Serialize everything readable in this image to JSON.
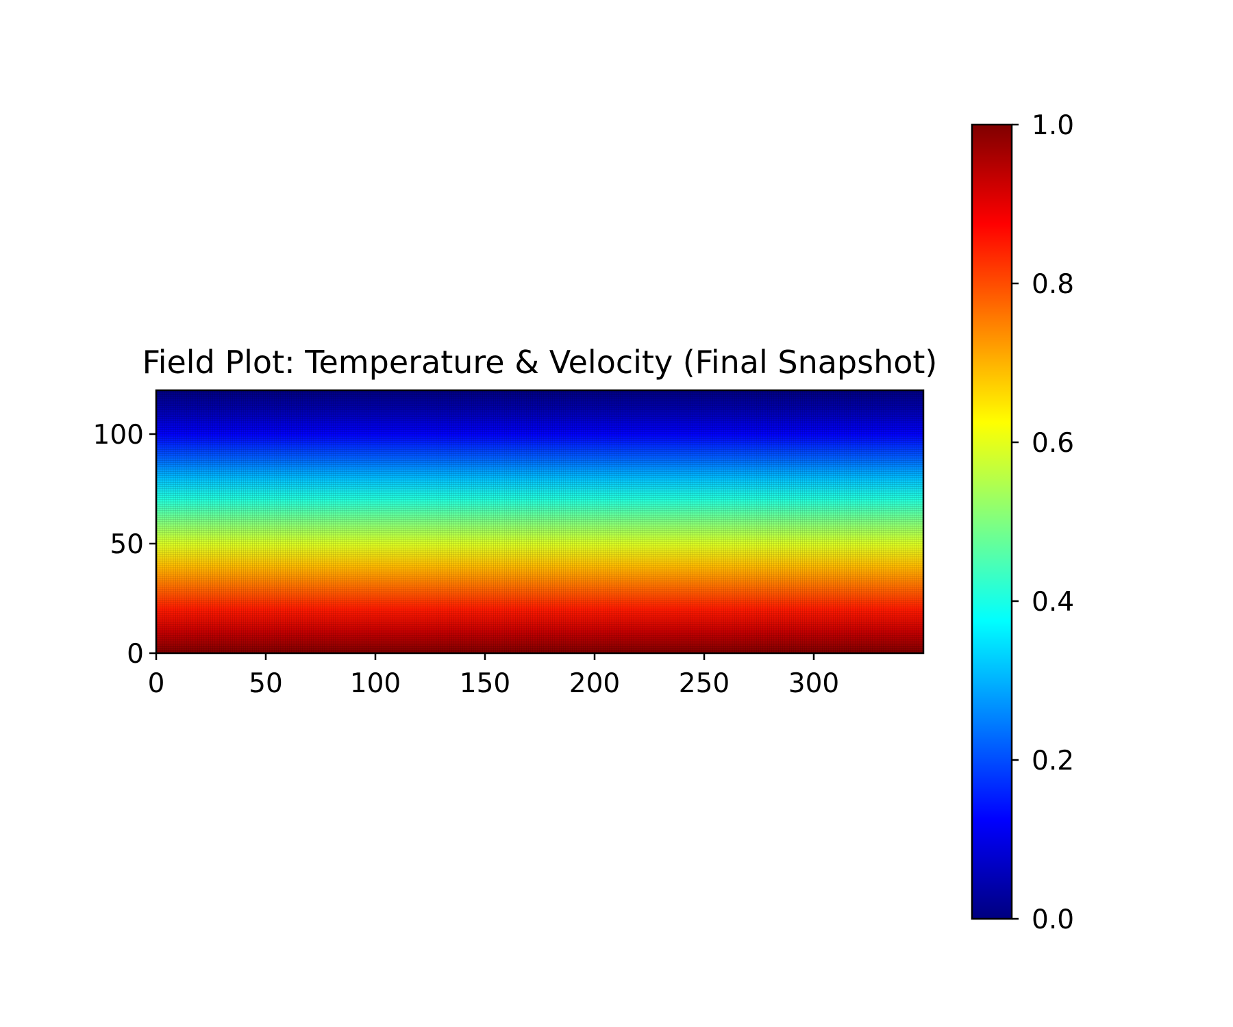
{
  "chart_data": {
    "type": "heatmap",
    "title": "Field Plot: Temperature & Velocity (Final Snapshot)",
    "xlabel": "",
    "ylabel": "",
    "xlim": [
      0,
      350
    ],
    "ylim": [
      0,
      120
    ],
    "x_ticks": [
      0,
      50,
      100,
      150,
      200,
      250,
      300
    ],
    "y_ticks": [
      0,
      50,
      100
    ],
    "grid": false,
    "colormap": "jet",
    "value_range": [
      0.0,
      1.0
    ],
    "field": {
      "description_rows": "value varies with y, nearly uniform along x",
      "y": [
        0,
        10,
        20,
        30,
        40,
        50,
        60,
        70,
        80,
        90,
        100,
        110,
        120
      ],
      "values": [
        1.0,
        0.93,
        0.85,
        0.77,
        0.69,
        0.59,
        0.5,
        0.41,
        0.31,
        0.21,
        0.12,
        0.05,
        0.0
      ]
    },
    "colorbar": {
      "ticks": [
        0.0,
        0.2,
        0.4,
        0.6,
        0.8,
        1.0
      ],
      "tick_labels": [
        "0.0",
        "0.2",
        "0.4",
        "0.6",
        "0.8",
        "1.0"
      ]
    }
  }
}
